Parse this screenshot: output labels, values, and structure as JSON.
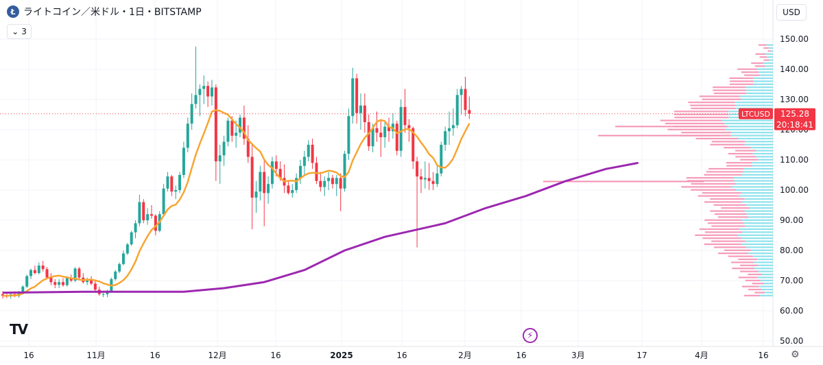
{
  "header": {
    "logo": "Ł",
    "title": "ライトコイン／米ドル・1日・BITSTAMP"
  },
  "legend_toggle": {
    "icon": "chevron-down-icon",
    "count": "3"
  },
  "currency": "USD",
  "price_label": {
    "symbol": "LTCUSD",
    "price": "125.28",
    "countdown": "20:18:41",
    "color": "#f23645"
  },
  "tradingview_logo": "TV",
  "colors": {
    "up": "#26a69a",
    "down": "#f23645",
    "ma_short": "#f7a531",
    "ma_long": "#9c27b0",
    "vp_up": "#80deea",
    "vp_down": "#f48fb1"
  },
  "chart_data": {
    "type": "candlestick",
    "y_ticks": [
      "150.00",
      "140.00",
      "130.00",
      "120.00",
      "110.00",
      "100.00",
      "90.00",
      "80.00",
      "70.00",
      "60.00",
      "50.00"
    ],
    "ylim": [
      50,
      150
    ],
    "x_ticks": [
      "16",
      "11月",
      "16",
      "12月",
      "16",
      "2025",
      "16",
      "2月",
      "16",
      "3月",
      "17",
      "4月",
      "16"
    ],
    "candles": [
      [
        65.5,
        66.5,
        64,
        65
      ],
      [
        65,
        66.2,
        64.2,
        64.8
      ],
      [
        64.8,
        66,
        64,
        65.5
      ],
      [
        65.5,
        66.5,
        64.5,
        64.9
      ],
      [
        64.9,
        66.6,
        64.4,
        66.2
      ],
      [
        66.2,
        68.5,
        65.5,
        68
      ],
      [
        68,
        72,
        67.5,
        71.5
      ],
      [
        71.5,
        74,
        70.5,
        73.5
      ],
      [
        73.5,
        75,
        72,
        72.5
      ],
      [
        72.5,
        76,
        72,
        75
      ],
      [
        75,
        76.5,
        73,
        73.8
      ],
      [
        73.8,
        74.5,
        70.5,
        71
      ],
      [
        71,
        72.5,
        68.5,
        69.5
      ],
      [
        69.5,
        70.5,
        67.5,
        68.6
      ],
      [
        68.6,
        70.5,
        67.5,
        69.5
      ],
      [
        69.5,
        70.8,
        68,
        68.5
      ],
      [
        68.5,
        71.5,
        68,
        71
      ],
      [
        71,
        72,
        69.5,
        70
      ],
      [
        70,
        74.5,
        69.5,
        74
      ],
      [
        74,
        74.5,
        70.5,
        71
      ],
      [
        71,
        72.5,
        69,
        69.5
      ],
      [
        69.5,
        71,
        68.5,
        70.5
      ],
      [
        70.5,
        71.5,
        68.5,
        69
      ],
      [
        69,
        70,
        66.5,
        67
      ],
      [
        67,
        68,
        65,
        65.5
      ],
      [
        65.5,
        66.5,
        64.5,
        65.5
      ],
      [
        65.5,
        67,
        64.5,
        66.5
      ],
      [
        66.5,
        71,
        66,
        70.5
      ],
      [
        70.5,
        73.5,
        70,
        73
      ],
      [
        73,
        76,
        72.5,
        75.5
      ],
      [
        75.5,
        80,
        75,
        79
      ],
      [
        79,
        82.5,
        78.5,
        82
      ],
      [
        82,
        86.5,
        81.5,
        86
      ],
      [
        86,
        90,
        84,
        89
      ],
      [
        89,
        98.5,
        88,
        96
      ],
      [
        96,
        97,
        89,
        90
      ],
      [
        90,
        94,
        88.5,
        92
      ],
      [
        92,
        95,
        90.5,
        91.5
      ],
      [
        91.5,
        92,
        85,
        86.5
      ],
      [
        86.5,
        93,
        86,
        92
      ],
      [
        92,
        102,
        91.5,
        100.5
      ],
      [
        100.5,
        106,
        99.5,
        104.5
      ],
      [
        104.5,
        105,
        98,
        99.5
      ],
      [
        99.5,
        101.5,
        97,
        100
      ],
      [
        100,
        106,
        99,
        105
      ],
      [
        105,
        116,
        104,
        114
      ],
      [
        114,
        124,
        112.5,
        122
      ],
      [
        122,
        132,
        120,
        128.5
      ],
      [
        128.5,
        147.5,
        127,
        131.5
      ],
      [
        131.5,
        135,
        124.5,
        133.5
      ],
      [
        133.5,
        138,
        128.5,
        134.5
      ],
      [
        134.5,
        136,
        127.5,
        131
      ],
      [
        131,
        136.5,
        128,
        134
      ],
      [
        134,
        135,
        103,
        109.5
      ],
      [
        109.5,
        115,
        102,
        111.5
      ],
      [
        111.5,
        118,
        108,
        116
      ],
      [
        116,
        124,
        114.5,
        123
      ],
      [
        123,
        124.5,
        116,
        118
      ],
      [
        118,
        123,
        114,
        119
      ],
      [
        119,
        125,
        117.5,
        124
      ],
      [
        124,
        128,
        115,
        117
      ],
      [
        117,
        121.5,
        109,
        111
      ],
      [
        111,
        115,
        87,
        97.5
      ],
      [
        97.5,
        103,
        92.5,
        99.5
      ],
      [
        99.5,
        108,
        96.5,
        106
      ],
      [
        106,
        110,
        88,
        99
      ],
      [
        99,
        104.5,
        95.5,
        102
      ],
      [
        102,
        111,
        100.5,
        109.5
      ],
      [
        109.5,
        111.5,
        104.5,
        107
      ],
      [
        107,
        109.5,
        103,
        104
      ],
      [
        104,
        108.5,
        99,
        101.5
      ],
      [
        101.5,
        103,
        98.5,
        99
      ],
      [
        99,
        102,
        97.5,
        100
      ],
      [
        100,
        105.5,
        99,
        104
      ],
      [
        104,
        110,
        102,
        108
      ],
      [
        108,
        113,
        105,
        111
      ],
      [
        111,
        116.5,
        109.5,
        115
      ],
      [
        115,
        117,
        107,
        109
      ],
      [
        109,
        111,
        102,
        103
      ],
      [
        103,
        106,
        99.5,
        101
      ],
      [
        101,
        104.5,
        98,
        103
      ],
      [
        103,
        106,
        100,
        104
      ],
      [
        104,
        105,
        100.5,
        102
      ],
      [
        102,
        105,
        98,
        104
      ],
      [
        104,
        105.5,
        93,
        100.5
      ],
      [
        100.5,
        113,
        99.5,
        112
      ],
      [
        112,
        127,
        110,
        124.5
      ],
      [
        124.5,
        140.5,
        122,
        137
      ],
      [
        137,
        138.5,
        122,
        125.5
      ],
      [
        125.5,
        132,
        120,
        128
      ],
      [
        128,
        132,
        119,
        122.5
      ],
      [
        122.5,
        125,
        113,
        114.5
      ],
      [
        114.5,
        122,
        112.5,
        120.5
      ],
      [
        120.5,
        126,
        116,
        119
      ],
      [
        119,
        123,
        111,
        117.5
      ],
      [
        117.5,
        122.5,
        114,
        121
      ],
      [
        121,
        124,
        116,
        119.5
      ],
      [
        119.5,
        125.5,
        117,
        122
      ],
      [
        122,
        123,
        111.5,
        113
      ],
      [
        113,
        130,
        111,
        127.5
      ],
      [
        127.5,
        133.5,
        119,
        121.5
      ],
      [
        121.5,
        123.5,
        116,
        120.5
      ],
      [
        120.5,
        121,
        107,
        109.5
      ],
      [
        109.5,
        111,
        81,
        104.5
      ],
      [
        104.5,
        107,
        99,
        103.5
      ],
      [
        103.5,
        109.5,
        100.5,
        104
      ],
      [
        104,
        109,
        100,
        103
      ],
      [
        103,
        106,
        100,
        102
      ],
      [
        102,
        108,
        101,
        105.5
      ],
      [
        105.5,
        116,
        104.5,
        115
      ],
      [
        115,
        121,
        113,
        119.5
      ],
      [
        119.5,
        126,
        115,
        120.5
      ],
      [
        120.5,
        127,
        118,
        121.5
      ],
      [
        121.5,
        133.5,
        120.5,
        131.5
      ],
      [
        131.5,
        134.5,
        125,
        133.5
      ],
      [
        133.5,
        137.5,
        124.5,
        126.5
      ],
      [
        126.5,
        131,
        123.5,
        125.28
      ]
    ],
    "ma_short_end": 123,
    "ma_long": [
      [
        0,
        66
      ],
      [
        20,
        66.3
      ],
      [
        45,
        66.3
      ],
      [
        55,
        67.5
      ],
      [
        65,
        69.5
      ],
      [
        75,
        73.5
      ],
      [
        85,
        80
      ],
      [
        95,
        84.5
      ],
      [
        110,
        89
      ],
      [
        120,
        94
      ],
      [
        130,
        98
      ],
      [
        140,
        103
      ],
      [
        150,
        107
      ],
      [
        158,
        109
      ]
    ],
    "volume_profile_note": ""
  }
}
